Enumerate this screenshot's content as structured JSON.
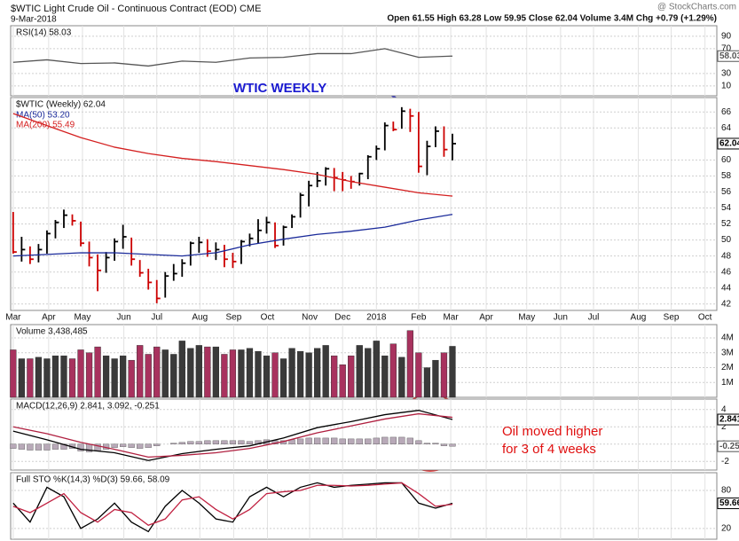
{
  "header": {
    "symbol_title": "$WTIC Light Crude Oil - Continuous Contract (EOD) CME",
    "date": "9-Mar-2018",
    "quote": "Open 61.55  High 63.28  Low 59.95  Close 62.04  Volume 3.4M  Chg +0.79 (+1.29%)",
    "credit": "@ StockCharts.com"
  },
  "chart_data": [
    {
      "type": "line",
      "title": "RSI(14) 58.03",
      "ylim": [
        -6,
        107
      ],
      "yticks": [
        10,
        30,
        70,
        90
      ],
      "series": [
        {
          "color": "#555555",
          "tag": true,
          "x": [
            0,
            4,
            8,
            12,
            16,
            20,
            24,
            28,
            32,
            36,
            40,
            44,
            48,
            52
          ],
          "values": [
            48,
            52,
            46,
            47,
            42,
            50,
            48,
            55,
            56,
            62,
            62,
            70,
            56,
            58.03
          ]
        }
      ]
    },
    {
      "type": "ohlc",
      "title": "$WTIC (Weekly) 62.04",
      "annotation": "WTIC WEEKLY",
      "up_color": "#000000",
      "down_color": "#cc0000",
      "xlim": [
        -0.3,
        83.3
      ],
      "xticks": [
        {
          "value": 0,
          "label": "Mar"
        },
        {
          "value": 4.2,
          "label": "Apr"
        },
        {
          "value": 8.2,
          "label": "May"
        },
        {
          "value": 13.1,
          "label": "Jun"
        },
        {
          "value": 17.0,
          "label": "Jul"
        },
        {
          "value": 22.1,
          "label": "Aug"
        },
        {
          "value": 26.1,
          "label": "Sep"
        },
        {
          "value": 30.1,
          "label": "Oct"
        },
        {
          "value": 35.1,
          "label": "Nov"
        },
        {
          "value": 39.0,
          "label": "Dec"
        },
        {
          "value": 43.0,
          "label": "2018"
        },
        {
          "value": 48.0,
          "label": "Feb"
        },
        {
          "value": 51.8,
          "label": "Mar"
        },
        {
          "value": 56.0,
          "label": "Apr"
        },
        {
          "value": 60.8,
          "label": "May"
        },
        {
          "value": 64.8,
          "label": "Jun"
        },
        {
          "value": 68.7,
          "label": "Jul"
        },
        {
          "value": 74.0,
          "label": "Aug"
        },
        {
          "value": 77.9,
          "label": "Sep"
        },
        {
          "value": 81.9,
          "label": "Oct"
        }
      ],
      "ylim": [
        41.2,
        67.8
      ],
      "yticks": [
        42,
        44,
        46,
        48,
        50,
        52,
        54,
        56,
        58,
        60,
        64,
        66
      ],
      "x": [
        0,
        1,
        2,
        3,
        4,
        5,
        6,
        7,
        8,
        9,
        10,
        11,
        12,
        13,
        14,
        15,
        16,
        17,
        18,
        19,
        20,
        21,
        22,
        23,
        24,
        25,
        26,
        27,
        28,
        29,
        30,
        31,
        32,
        33,
        34,
        35,
        36,
        37,
        38,
        39,
        40,
        41,
        42,
        43,
        44,
        45,
        46,
        47,
        48,
        49,
        50,
        51,
        52
      ],
      "high": [
        53.5,
        50.4,
        49.2,
        49.5,
        51.2,
        52.5,
        53.8,
        53.2,
        52.3,
        49.8,
        48.2,
        48.5,
        50.2,
        51.9,
        50.3,
        47.5,
        46.4,
        45.0,
        46.0,
        47.0,
        47.6,
        49.8,
        50.4,
        50.1,
        49.7,
        49.4,
        48.4,
        50.0,
        50.8,
        52.6,
        52.9,
        52.2,
        51.8,
        53.2,
        55.9,
        57.4,
        58.5,
        59.1,
        59.0,
        58.5,
        58.0,
        58.4,
        60.6,
        61.8,
        64.7,
        64.8,
        66.6,
        66.4,
        66.0,
        62.4,
        64.2,
        64.2,
        63.28
      ],
      "low": [
        48.3,
        47.3,
        47.0,
        47.2,
        48.3,
        50.2,
        51.5,
        51.8,
        49.2,
        46.7,
        43.6,
        45.9,
        47.4,
        48.9,
        46.8,
        45.4,
        43.8,
        42.1,
        42.8,
        44.9,
        45.4,
        46.8,
        48.4,
        47.9,
        47.5,
        46.6,
        46.5,
        47.0,
        49.2,
        49.6,
        50.8,
        49.0,
        49.3,
        51.5,
        52.8,
        54.2,
        56.6,
        56.8,
        56.1,
        56.1,
        56.4,
        56.8,
        57.6,
        60.0,
        61.2,
        63.6,
        63.9,
        63.5,
        58.4,
        58.1,
        61.6,
        60.4,
        59.95
      ],
      "close": [
        48.5,
        48.8,
        47.6,
        48.8,
        50.8,
        52.2,
        53.1,
        52.4,
        49.6,
        47.8,
        46.2,
        47.8,
        49.8,
        50.4,
        47.6,
        45.9,
        44.7,
        42.7,
        45.5,
        45.8,
        47.1,
        49.6,
        49.7,
        48.6,
        48.8,
        47.6,
        47.3,
        49.8,
        50.2,
        51.2,
        52.2,
        49.3,
        51.6,
        52.9,
        55.6,
        56.8,
        57.4,
        58.9,
        57.8,
        57.5,
        57.3,
        58.3,
        60.4,
        61.4,
        64.3,
        63.8,
        66.1,
        65.5,
        59.2,
        61.7,
        63.6,
        61.3,
        62.04
      ],
      "overlays": [
        {
          "name": "MA(50) 53.20",
          "color": "#1a2a9a",
          "x": [
            0,
            4,
            8,
            12,
            16,
            20,
            24,
            28,
            32,
            36,
            40,
            44,
            48,
            52
          ],
          "values": [
            48.0,
            48.2,
            48.4,
            48.4,
            48.2,
            48.0,
            48.4,
            49.4,
            50.1,
            50.7,
            51.1,
            51.6,
            52.5,
            53.2
          ]
        },
        {
          "name": "MA(200) 55.49",
          "color": "#d42020",
          "x": [
            0,
            4,
            8,
            12,
            16,
            20,
            24,
            28,
            32,
            36,
            40,
            44,
            48,
            52
          ],
          "values": [
            65.8,
            64.3,
            62.8,
            61.6,
            60.8,
            60.2,
            59.8,
            59.3,
            58.8,
            58.2,
            57.3,
            56.6,
            55.9,
            55.49
          ]
        }
      ]
    },
    {
      "type": "bar",
      "title": "Volume 3,438,485",
      "up_color": "#3a3a3a",
      "down_color": "#a8325e",
      "ylim": [
        0,
        4900000
      ],
      "yticks": [
        {
          "value": 1000000,
          "label": "1M"
        },
        {
          "value": 2000000,
          "label": "2M"
        },
        {
          "value": 3000000,
          "label": "3M"
        },
        {
          "value": 4000000,
          "label": "4M"
        }
      ],
      "values": [
        3200000,
        2600000,
        2600000,
        2700000,
        2600000,
        2800000,
        2800000,
        2600000,
        3200000,
        3000000,
        3400000,
        2800000,
        2600000,
        2800000,
        2500000,
        3500000,
        2900000,
        3400000,
        3200000,
        2900000,
        3800000,
        3300000,
        3500000,
        3400000,
        3400000,
        2900000,
        3200000,
        3200000,
        3300000,
        3100000,
        2800000,
        3000000,
        2600000,
        3300000,
        3100000,
        3000000,
        3300000,
        3500000,
        2800000,
        2200000,
        2800000,
        3500000,
        3300000,
        3800000,
        2800000,
        3600000,
        2700000,
        4500000,
        3000000,
        2000000,
        2500000,
        3000000,
        3438485
      ]
    },
    {
      "type": "line",
      "title": "MACD(12,26,9) 2.841, 3.092, -0.251",
      "annotation": [
        "Oil moved higher",
        "for 3 of 4 weeks"
      ],
      "ylim": [
        -3.0,
        5.2
      ],
      "yticks": [
        -2,
        0,
        2,
        4
      ],
      "series": [
        {
          "color": "#000000",
          "tag": true,
          "x": [
            0,
            4,
            8,
            12,
            16,
            20,
            24,
            28,
            32,
            36,
            40,
            44,
            48,
            52
          ],
          "values": [
            1.5,
            0.5,
            -0.6,
            -1.0,
            -1.9,
            -1.1,
            -0.6,
            -0.2,
            0.7,
            1.9,
            2.6,
            3.4,
            3.9,
            2.841
          ]
        },
        {
          "color": "#b02040",
          "x": [
            0,
            4,
            8,
            12,
            16,
            20,
            24,
            28,
            32,
            36,
            40,
            44,
            48,
            52
          ],
          "values": [
            2.0,
            1.2,
            0.2,
            -0.6,
            -1.5,
            -1.3,
            -1.0,
            -0.5,
            0.3,
            1.3,
            2.1,
            2.9,
            3.5,
            3.092
          ]
        }
      ],
      "histogram": {
        "color": "#b8a9b8",
        "tag": true,
        "values": [
          -0.5,
          -0.6,
          -0.7,
          -0.7,
          -0.7,
          -0.6,
          -0.6,
          -0.5,
          -0.8,
          -0.9,
          -0.8,
          -0.6,
          -0.4,
          -0.3,
          -0.4,
          -0.5,
          -0.4,
          -0.2,
          0.0,
          0.1,
          0.2,
          0.3,
          0.3,
          0.4,
          0.4,
          0.4,
          0.4,
          0.4,
          0.3,
          0.4,
          0.5,
          0.4,
          0.4,
          0.5,
          0.6,
          0.7,
          0.7,
          0.7,
          0.7,
          0.6,
          0.6,
          0.6,
          0.6,
          0.7,
          0.8,
          0.8,
          0.8,
          0.7,
          0.4,
          0.1,
          0.1,
          -0.2,
          -0.251
        ]
      }
    },
    {
      "type": "line",
      "title": "Full STO %K(14,3) %D(3) 59.66, 58.09",
      "ylim": [
        3,
        108
      ],
      "yticks": [
        20,
        80
      ],
      "series": [
        {
          "color": "#000000",
          "tag": true,
          "x": [
            0,
            2,
            4,
            6,
            8,
            10,
            12,
            14,
            16,
            18,
            20,
            22,
            24,
            26,
            28,
            30,
            32,
            34,
            36,
            38,
            40,
            42,
            44,
            46,
            48,
            50,
            52
          ],
          "values": [
            60,
            30,
            85,
            70,
            20,
            35,
            60,
            30,
            15,
            55,
            80,
            60,
            35,
            30,
            70,
            85,
            70,
            85,
            92,
            85,
            88,
            90,
            92,
            92,
            60,
            52,
            59.66
          ]
        },
        {
          "color": "#c02040",
          "x": [
            0,
            2,
            4,
            6,
            8,
            10,
            12,
            14,
            16,
            18,
            20,
            22,
            24,
            26,
            28,
            30,
            32,
            34,
            36,
            38,
            40,
            42,
            44,
            46,
            48,
            50,
            52
          ],
          "values": [
            55,
            45,
            60,
            75,
            45,
            30,
            50,
            45,
            25,
            35,
            65,
            70,
            50,
            35,
            50,
            75,
            78,
            80,
            88,
            88,
            87,
            88,
            90,
            92,
            75,
            55,
            58.09
          ]
        }
      ]
    }
  ]
}
